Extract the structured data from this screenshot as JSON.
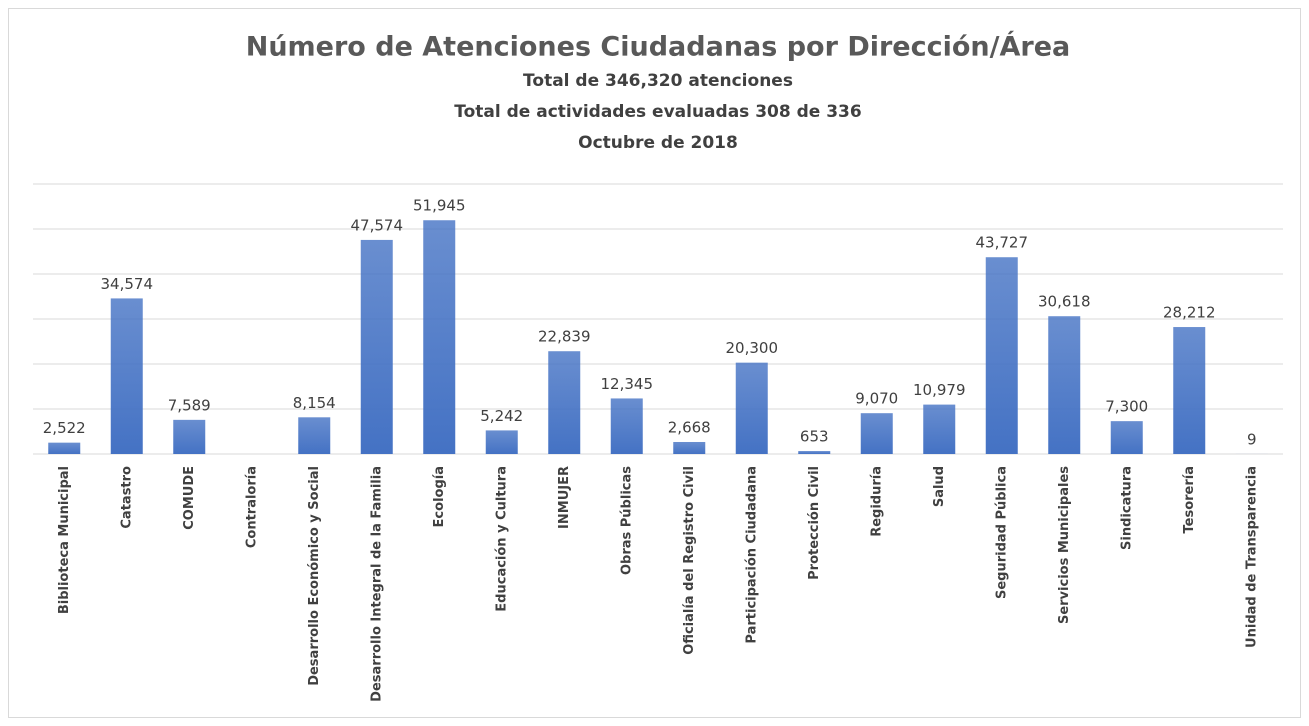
{
  "chart_data": {
    "type": "bar",
    "title": "Número de Atenciones Ciudadanas por Dirección/Área",
    "subtitles": [
      "Total de 346,320 atenciones",
      "Total de actividades evaluadas 308 de 336",
      "Octubre de 2018"
    ],
    "categories": [
      "Biblioteca Municipal",
      "Catastro",
      "COMUDE",
      "Contraloría",
      "Desarrollo Económico y Social",
      "Desarrollo Integral de la Familia",
      "Ecología",
      "Educación y Cultura",
      "INMUJER",
      "Obras Públicas",
      "Oficialía del Registro Civil",
      "Participación Ciudadana",
      "Protección Civil",
      "Regiduría",
      "Salud",
      "Seguridad Pública",
      "Servicios Municipales",
      "Sindicatura",
      "Tesorería",
      "Unidad de Transparencia"
    ],
    "values": [
      2522,
      34574,
      7589,
      null,
      8154,
      47574,
      51945,
      5242,
      22839,
      12345,
      2668,
      20300,
      653,
      9070,
      10979,
      43727,
      30618,
      7300,
      28212,
      9
    ],
    "value_labels": [
      "2,522",
      "34,574",
      "7,589",
      null,
      "8,154",
      "47,574",
      "51,945",
      "5,242",
      "22,839",
      "12,345",
      "2,668",
      "20,300",
      "653",
      "9,070",
      "10,979",
      "43,727",
      "30,618",
      "7,300",
      "28,212",
      "9"
    ],
    "color": "#4472c4",
    "ylim": [
      0,
      60000
    ],
    "yticks": [
      0,
      10000,
      20000,
      30000,
      40000,
      50000,
      60000
    ],
    "grid": true
  }
}
